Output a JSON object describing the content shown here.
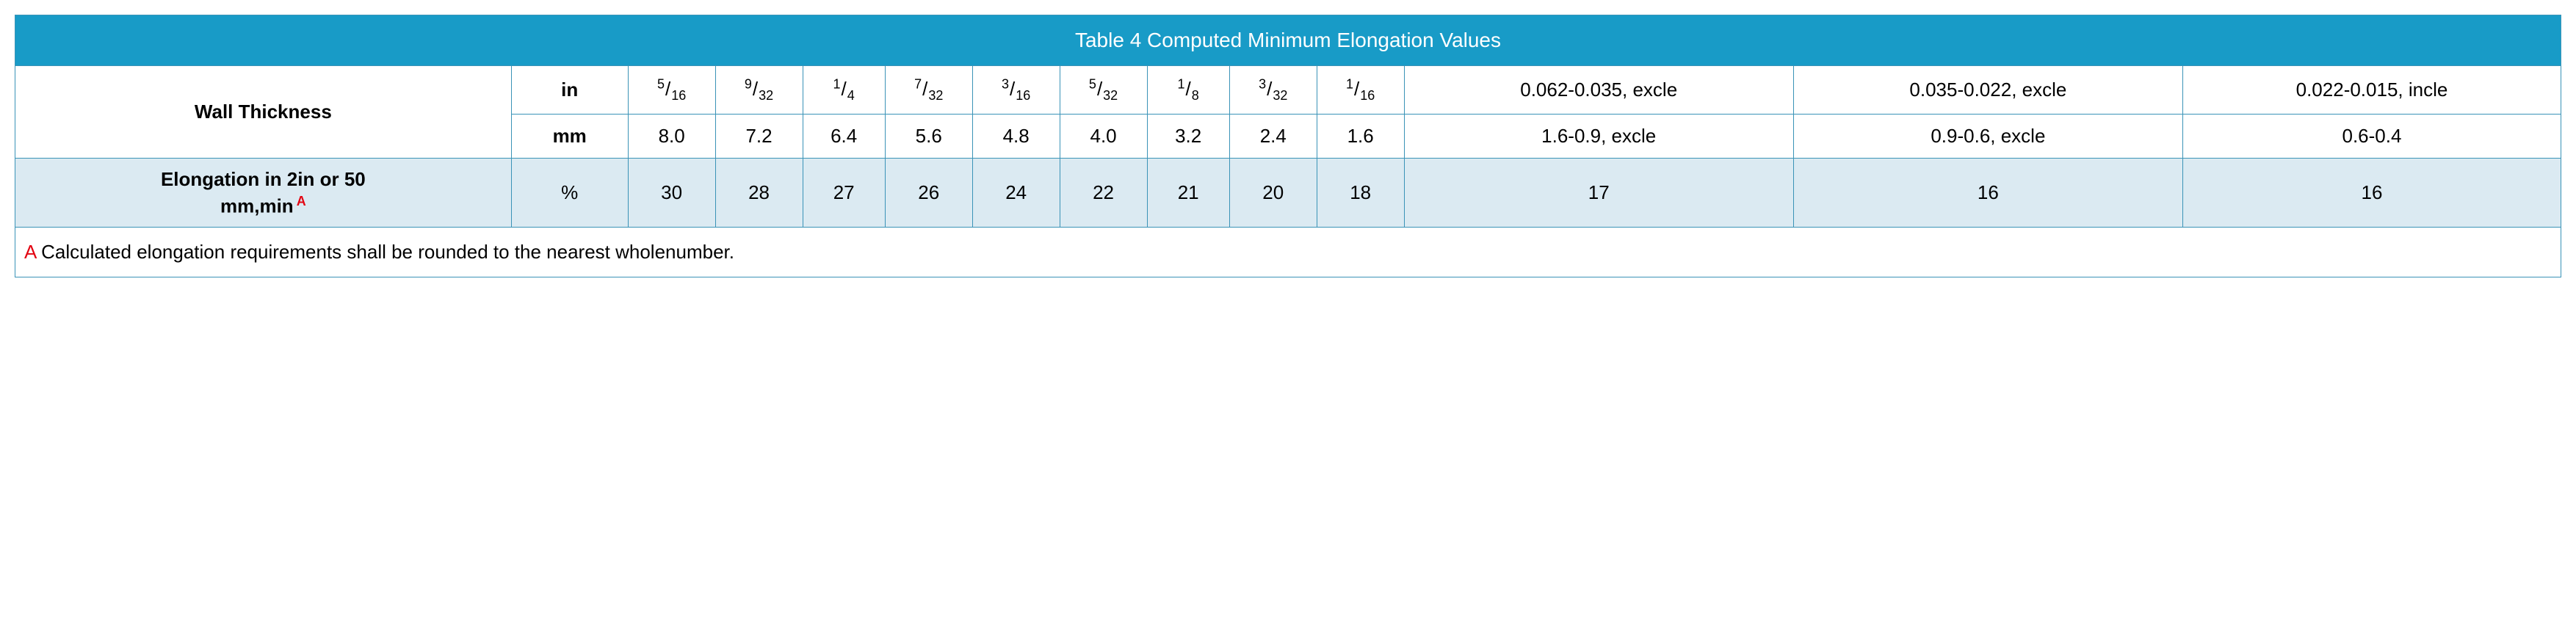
{
  "table": {
    "title": "Table 4 Computed Minimum Elongation Values",
    "row_label_wall": "Wall Thickness",
    "row_label_elong_line1": "Elongation in 2in or 50",
    "row_label_elong_line2": "mm,min",
    "row_label_elong_sup": "A",
    "units": {
      "in": "in",
      "mm": "mm",
      "pct": "%"
    },
    "fractions": [
      {
        "num": "5",
        "den": "16"
      },
      {
        "num": "9",
        "den": "32"
      },
      {
        "num": "1",
        "den": "4"
      },
      {
        "num": "7",
        "den": "32"
      },
      {
        "num": "3",
        "den": "16"
      },
      {
        "num": "5",
        "den": "32"
      },
      {
        "num": "1",
        "den": "8"
      },
      {
        "num": "3",
        "den": "32"
      },
      {
        "num": "1",
        "den": "16"
      }
    ],
    "in_ranges": [
      "0.062-0.035, excle",
      "0.035-0.022, excle",
      "0.022-0.015, incle"
    ],
    "mm_values": [
      "8.0",
      "7.2",
      "6.4",
      "5.6",
      "4.8",
      "4.0",
      "3.2",
      "2.4",
      "1.6"
    ],
    "mm_ranges": [
      "1.6-0.9, excle",
      "0.9-0.6, excle",
      "0.6-0.4"
    ],
    "elong_values": [
      "30",
      "28",
      "27",
      "26",
      "24",
      "22",
      "21",
      "20",
      "18",
      "17",
      "16",
      "16"
    ],
    "footnote": {
      "marker": "A",
      "text": " Calculated elongation requirements shall be rounded to the nearest wholenumber."
    },
    "colors": {
      "header_bg": "#189bc7",
      "header_text": "#ffffff",
      "border": "#3a93b7",
      "elong_bg": "#dbeaf2",
      "footnote_marker": "#e30613",
      "body_bg": "#ffffff",
      "text": "#000000"
    }
  }
}
